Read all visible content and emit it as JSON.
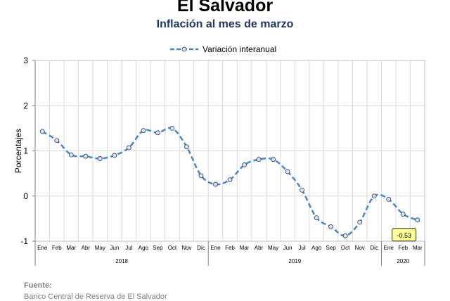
{
  "header": {
    "title": "El Salvador",
    "subtitle": "Inflación al mes de marzo"
  },
  "footer": {
    "source_label": "Fuente:",
    "source_text": "Banco Central de Reserva de El Salvador"
  },
  "chart_data": {
    "type": "line",
    "title": "El Salvador",
    "subtitle": "Inflación al mes de marzo",
    "ylabel": "Porcentajes",
    "ylim": [
      -1,
      3
    ],
    "yticks": [
      -1,
      0,
      1,
      2,
      3
    ],
    "grid": true,
    "legend_position": "top-center",
    "categories": [
      "Ene",
      "Feb",
      "Mar",
      "Abr",
      "May",
      "Jun",
      "Jul",
      "Ago",
      "Sep",
      "Oct",
      "Nov",
      "Dic",
      "Ene",
      "Feb",
      "Mar",
      "Abr",
      "May",
      "Jun",
      "Jul",
      "Ago",
      "Sep",
      "Oct",
      "Nov",
      "Dic",
      "Ene",
      "Feb",
      "Mar"
    ],
    "year_groups": [
      {
        "label": "2018",
        "count": 12
      },
      {
        "label": "2019",
        "count": 12
      },
      {
        "label": "2020",
        "count": 3
      }
    ],
    "series": [
      {
        "name": "Variación interanual",
        "color": "#4a86c5",
        "values": [
          1.43,
          1.23,
          0.91,
          0.88,
          0.83,
          0.9,
          1.07,
          1.45,
          1.4,
          1.5,
          1.09,
          0.45,
          0.26,
          0.36,
          0.69,
          0.81,
          0.81,
          0.54,
          0.13,
          -0.48,
          -0.68,
          -0.88,
          -0.58,
          0.0,
          -0.07,
          -0.4,
          -0.53
        ]
      }
    ],
    "annotations": [
      {
        "label": "-0.53",
        "category_index": 26
      }
    ]
  }
}
